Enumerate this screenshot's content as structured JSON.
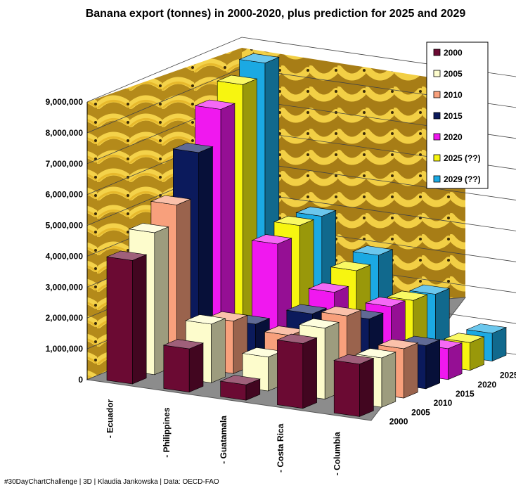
{
  "chart_data": {
    "type": "bar",
    "subtype": "3d-column",
    "title": "Banana export (tonnes) in 2000-2020, plus prediction for 2025 and 2029",
    "categories": [
      "- Ecuador",
      "- Philippines",
      "- Guatamala",
      "- Costa Rica",
      "- Columbia"
    ],
    "y_ticks": [
      "0",
      "1,000,000",
      "2,000,000",
      "3,000,000",
      "4,000,000",
      "5,000,000",
      "6,000,000",
      "7,000,000",
      "8,000,000",
      "9,000,000"
    ],
    "ylim": [
      0,
      9000000
    ],
    "grid": true,
    "legend_position": "top-right",
    "series": [
      {
        "name": "2000",
        "color": "#6b0a33",
        "values": [
          4000000,
          1400000,
          500000,
          2100000,
          1700000
        ]
      },
      {
        "name": "2005",
        "color": "#fdfccc",
        "values": [
          4600000,
          1900000,
          1100000,
          2300000,
          1600000
        ]
      },
      {
        "name": "2010",
        "color": "#f8a07c",
        "values": [
          5200000,
          1700000,
          1500000,
          2400000,
          1600000
        ]
      },
      {
        "name": "2015",
        "color": "#0b1a5c",
        "values": [
          6600000,
          1300000,
          1900000,
          2000000,
          1400000
        ]
      },
      {
        "name": "2020",
        "color": "#f018ef",
        "values": [
          7700000,
          3600000,
          2300000,
          2100000,
          1000000
        ]
      },
      {
        "name": "2025 (??)",
        "color": "#f7f510",
        "values": [
          8200000,
          3900000,
          2700000,
          2000000,
          900000
        ]
      },
      {
        "name": "2029 (??)",
        "color": "#1ba9e3",
        "values": [
          8600000,
          3900000,
          2900000,
          1900000,
          900000
        ]
      }
    ]
  },
  "footer": "#30DayChartChallenge  |  3D  | Klaudia Jankowska  |  Data: OECD-FAO"
}
